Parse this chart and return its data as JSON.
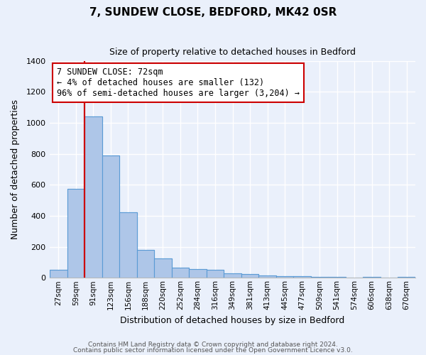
{
  "title": "7, SUNDEW CLOSE, BEDFORD, MK42 0SR",
  "subtitle": "Size of property relative to detached houses in Bedford",
  "xlabel": "Distribution of detached houses by size in Bedford",
  "ylabel": "Number of detached properties",
  "bar_labels": [
    "27sqm",
    "59sqm",
    "91sqm",
    "123sqm",
    "156sqm",
    "188sqm",
    "220sqm",
    "252sqm",
    "284sqm",
    "316sqm",
    "349sqm",
    "381sqm",
    "413sqm",
    "445sqm",
    "477sqm",
    "509sqm",
    "541sqm",
    "574sqm",
    "606sqm",
    "638sqm",
    "670sqm"
  ],
  "bar_values": [
    50,
    575,
    1040,
    790,
    425,
    180,
    125,
    65,
    55,
    50,
    28,
    22,
    14,
    9,
    9,
    4,
    4,
    0,
    5,
    0,
    5
  ],
  "bar_color": "#aec6e8",
  "bar_edge_color": "#5b9bd5",
  "background_color": "#eaf0fb",
  "grid_color": "#d0daf0",
  "ylim": [
    0,
    1400
  ],
  "yticks": [
    0,
    200,
    400,
    600,
    800,
    1000,
    1200,
    1400
  ],
  "redline_x": 1,
  "redline_color": "#cc0000",
  "annotation_text": "7 SUNDEW CLOSE: 72sqm\n← 4% of detached houses are smaller (132)\n96% of semi-detached houses are larger (3,204) →",
  "annotation_box_color": "#ffffff",
  "annotation_box_edge": "#cc0000",
  "footer_line1": "Contains HM Land Registry data © Crown copyright and database right 2024.",
  "footer_line2": "Contains public sector information licensed under the Open Government Licence v3.0."
}
